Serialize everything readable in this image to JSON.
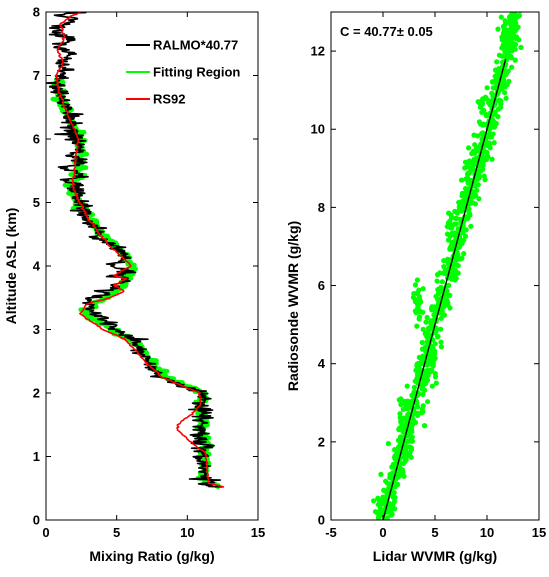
{
  "chart_data": [
    {
      "type": "line",
      "xlabel": "Mixing Ratio (g/kg)",
      "ylabel": "Altitude ASL (km)",
      "xlim": [
        0,
        15
      ],
      "ylim": [
        0,
        8
      ],
      "xticks": [
        "0",
        "5",
        "10",
        "15"
      ],
      "yticks": [
        "0",
        "1",
        "2",
        "3",
        "4",
        "5",
        "6",
        "7",
        "8"
      ],
      "legend_position": "top-right",
      "grid": false,
      "series": [
        {
          "name": "RALMO*40.77",
          "color": "#000000",
          "points": [
            [
              12.5,
              0.52
            ],
            [
              11.0,
              0.56
            ],
            [
              11.6,
              0.62
            ],
            [
              11.0,
              0.68
            ],
            [
              11.3,
              0.8
            ],
            [
              10.9,
              0.95
            ],
            [
              11.3,
              1.1
            ],
            [
              10.8,
              1.3
            ],
            [
              11.0,
              1.5
            ],
            [
              11.0,
              1.7
            ],
            [
              11.0,
              1.9
            ],
            [
              10.8,
              2.05
            ],
            [
              9.5,
              2.12
            ],
            [
              8.0,
              2.25
            ],
            [
              7.2,
              2.5
            ],
            [
              6.4,
              2.8
            ],
            [
              5.0,
              3.0
            ],
            [
              3.4,
              3.25
            ],
            [
              2.8,
              3.4
            ],
            [
              3.0,
              3.5
            ],
            [
              4.5,
              3.55
            ],
            [
              3.6,
              3.6
            ],
            [
              5.2,
              3.65
            ],
            [
              4.6,
              3.7
            ],
            [
              5.8,
              3.78
            ],
            [
              4.5,
              3.85
            ],
            [
              6.2,
              3.92
            ],
            [
              4.6,
              4.0
            ],
            [
              5.5,
              4.1
            ],
            [
              5.3,
              4.2
            ],
            [
              4.2,
              4.4
            ],
            [
              3.6,
              4.55
            ],
            [
              2.9,
              4.75
            ],
            [
              2.7,
              4.9
            ],
            [
              2.3,
              5.1
            ],
            [
              2.3,
              5.25
            ],
            [
              1.6,
              5.35
            ],
            [
              2.6,
              5.45
            ],
            [
              1.5,
              5.55
            ],
            [
              2.6,
              5.65
            ],
            [
              1.8,
              5.75
            ],
            [
              2.4,
              5.85
            ],
            [
              2.2,
              6.0
            ],
            [
              1.8,
              6.2
            ],
            [
              1.4,
              6.45
            ],
            [
              1.0,
              6.7
            ],
            [
              0.7,
              6.95
            ],
            [
              1.3,
              7.05
            ],
            [
              1.1,
              7.2
            ],
            [
              1.6,
              7.35
            ],
            [
              0.6,
              7.45
            ],
            [
              1.8,
              7.55
            ],
            [
              0.5,
              7.7
            ],
            [
              1.2,
              7.8
            ],
            [
              2.2,
              7.9
            ],
            [
              0.6,
              7.95
            ],
            [
              2.6,
              8.0
            ]
          ]
        },
        {
          "name": "Fitting Region",
          "color": "#00ff00",
          "points": [
            [
              12.3,
              0.52
            ],
            [
              11.2,
              0.6
            ],
            [
              11.2,
              0.8
            ],
            [
              11.3,
              1.0
            ],
            [
              11.3,
              1.2
            ],
            [
              11.1,
              1.4
            ],
            [
              11.1,
              1.6
            ],
            [
              11.0,
              1.8
            ],
            [
              11.1,
              2.0
            ],
            [
              9.8,
              2.12
            ],
            [
              8.4,
              2.25
            ],
            [
              7.4,
              2.5
            ],
            [
              6.2,
              2.8
            ],
            [
              4.6,
              3.0
            ],
            [
              3.2,
              3.2
            ],
            [
              2.7,
              3.3
            ],
            [
              3.5,
              3.4
            ],
            [
              4.5,
              3.55
            ],
            [
              5.4,
              3.7
            ],
            [
              6.1,
              3.9
            ],
            [
              6.0,
              4.05
            ],
            [
              5.3,
              4.25
            ],
            [
              4.3,
              4.45
            ],
            [
              3.7,
              4.6
            ],
            [
              3.1,
              4.75
            ],
            [
              2.4,
              5.0
            ],
            [
              1.8,
              5.25
            ],
            [
              2.3,
              5.5
            ],
            [
              2.5,
              5.75
            ],
            [
              2.3,
              6.0
            ],
            [
              1.9,
              6.2
            ],
            [
              1.4,
              6.45
            ],
            [
              1.0,
              6.7
            ],
            [
              0.8,
              6.95
            ]
          ]
        },
        {
          "name": "RS92",
          "color": "#ff0000",
          "points": [
            [
              12.6,
              0.52
            ],
            [
              11.5,
              0.58
            ],
            [
              11.4,
              0.8
            ],
            [
              11.3,
              1.05
            ],
            [
              10.4,
              1.2
            ],
            [
              9.4,
              1.4
            ],
            [
              9.3,
              1.5
            ],
            [
              10.2,
              1.65
            ],
            [
              10.9,
              1.8
            ],
            [
              10.9,
              2.0
            ],
            [
              9.8,
              2.1
            ],
            [
              8.2,
              2.25
            ],
            [
              6.8,
              2.55
            ],
            [
              5.6,
              2.85
            ],
            [
              4.0,
              3.0
            ],
            [
              2.4,
              3.25
            ],
            [
              2.9,
              3.4
            ],
            [
              4.5,
              3.5
            ],
            [
              5.5,
              3.6
            ],
            [
              4.8,
              3.7
            ],
            [
              5.7,
              3.8
            ],
            [
              4.8,
              3.85
            ],
            [
              6.0,
              4.0
            ],
            [
              5.6,
              4.1
            ],
            [
              4.6,
              4.3
            ],
            [
              3.8,
              4.5
            ],
            [
              3.0,
              4.75
            ],
            [
              2.4,
              5.0
            ],
            [
              1.9,
              5.25
            ],
            [
              2.0,
              5.5
            ],
            [
              2.1,
              5.75
            ],
            [
              2.3,
              6.0
            ],
            [
              1.8,
              6.25
            ],
            [
              1.3,
              6.5
            ],
            [
              0.9,
              6.75
            ],
            [
              0.7,
              7.0
            ],
            [
              1.2,
              7.2
            ],
            [
              0.8,
              7.4
            ],
            [
              1.3,
              7.6
            ],
            [
              1.0,
              7.8
            ],
            [
              1.9,
              7.95
            ],
            [
              2.5,
              8.0
            ]
          ]
        }
      ]
    },
    {
      "type": "scatter",
      "xlabel": "Lidar WVMR (g/kg)",
      "ylabel": "Radiosonde WVMR (g/kg)",
      "xlim": [
        -5,
        15
      ],
      "ylim": [
        0,
        13
      ],
      "xticks": [
        "-5",
        "0",
        "5",
        "10",
        "15"
      ],
      "yticks": [
        "0",
        "2",
        "4",
        "6",
        "8",
        "10",
        "12"
      ],
      "annotation": "C = 40.77± 0.05",
      "grid": false,
      "fit_line": {
        "color": "#000000",
        "slope": 1.0,
        "intercept": 0.0,
        "x_range": [
          0,
          11.8
        ]
      },
      "series": [
        {
          "name": "",
          "color": "#00ff00",
          "scatter_around_fit": {
            "x_range": [
              -0.5,
              12.8
            ],
            "spread": 0.7,
            "count": 900
          },
          "clusters": [
            [
              3.5,
              5.6
            ],
            [
              3.2,
              5.3
            ],
            [
              4.2,
              4.6
            ],
            [
              4.5,
              4.2
            ],
            [
              4.6,
              3.8
            ],
            [
              2.5,
              2.2
            ],
            [
              1.8,
              2.6
            ],
            [
              6.5,
              7.6
            ],
            [
              8.2,
              9.0
            ],
            [
              9.5,
              10.6
            ],
            [
              11.6,
              12.5
            ],
            [
              12.4,
              12.2
            ],
            [
              12.8,
              12.6
            ],
            [
              -0.3,
              0.3
            ],
            [
              0.5,
              0.5
            ]
          ]
        }
      ]
    }
  ]
}
